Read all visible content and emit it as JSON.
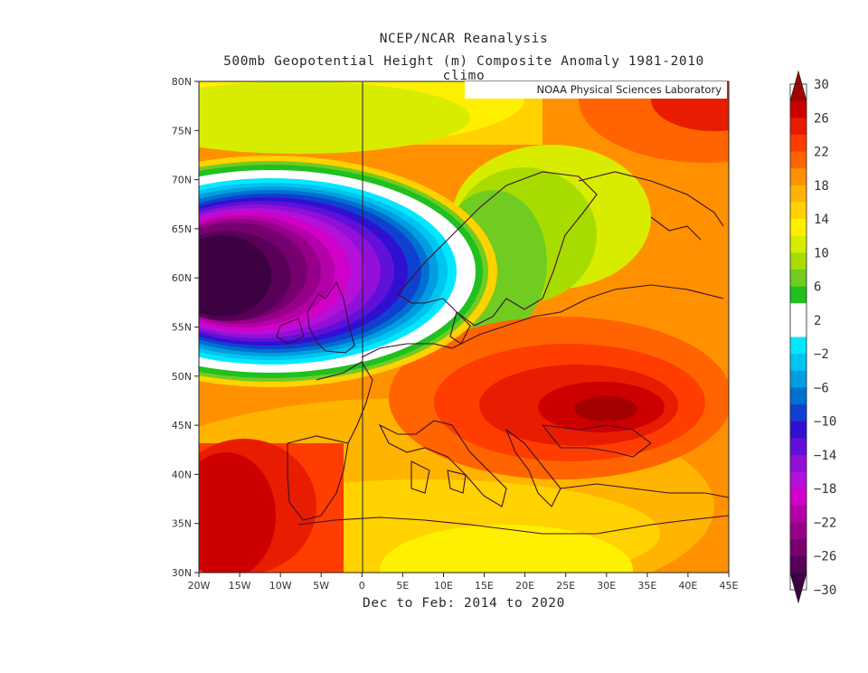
{
  "title_line1": "NCEP/NCAR Reanalysis",
  "title_line2": "500mb Geopotential Height (m) Composite Anomaly 1981-2010 climo",
  "credit": "NOAA Physical Sciences Laboratory",
  "footer": "Dec to Feb: 2014 to 2020",
  "lat_ticks": [
    "80N",
    "75N",
    "70N",
    "65N",
    "60N",
    "55N",
    "50N",
    "45N",
    "40N",
    "35N",
    "30N"
  ],
  "lon_ticks": [
    "20W",
    "15W",
    "10W",
    "5W",
    "0",
    "5E",
    "10E",
    "15E",
    "20E",
    "25E",
    "30E",
    "35E",
    "40E",
    "45E"
  ],
  "colorbar": {
    "labels": [
      "30",
      "26",
      "22",
      "18",
      "14",
      "10",
      "6",
      "2",
      "-2",
      "-6",
      "-10",
      "-14",
      "-18",
      "-22",
      "-26",
      "-30"
    ],
    "colors": [
      "#a50000",
      "#cc0000",
      "#e81c00",
      "#ff3d00",
      "#ff6400",
      "#ff9000",
      "#ffb400",
      "#ffd200",
      "#fff000",
      "#d8ec00",
      "#a8dc00",
      "#70cc20",
      "#20c020",
      "#ffffff",
      "#ffffff",
      "#00e8ff",
      "#00c4f0",
      "#009ee0",
      "#0070d0",
      "#1040d0",
      "#3010d0",
      "#6010d8",
      "#9010d8",
      "#b410d8",
      "#d000c8",
      "#b400a8",
      "#960088",
      "#760070",
      "#580058",
      "#3c0040"
    ]
  },
  "chart_data": {
    "type": "heatmap",
    "title": "NCEP/NCAR Reanalysis",
    "subtitle": "500mb Geopotential Height (m) Composite Anomaly 1981-2010 climo",
    "xlabel": "Dec to Feb: 2014 to 2020",
    "xlim": [
      -20,
      45
    ],
    "ylim": [
      30,
      80
    ],
    "color_range": [
      -30,
      30
    ],
    "features": [
      {
        "name": "negative anomaly center",
        "lon": -17,
        "lat": 60,
        "value": -30
      },
      {
        "name": "positive anomaly center",
        "lon": 30,
        "lat": 46,
        "value": 30
      },
      {
        "name": "positive anomaly",
        "lon": -18,
        "lat": 37,
        "value": 30
      },
      {
        "name": "positive anomaly",
        "lon": 42,
        "lat": 79,
        "value": 26
      }
    ]
  }
}
